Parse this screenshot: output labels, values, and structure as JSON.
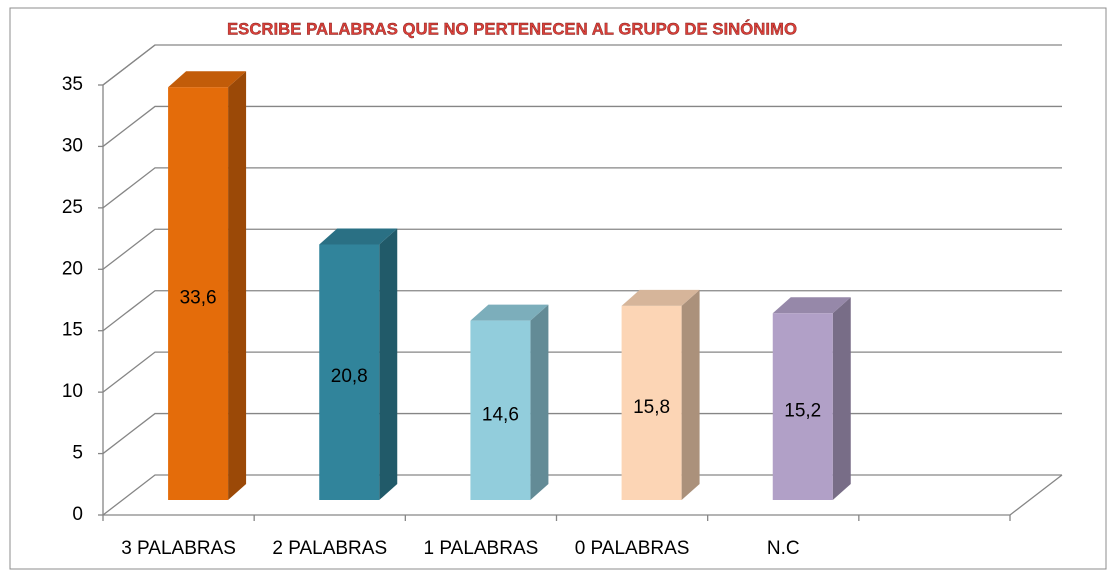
{
  "chart_data": {
    "type": "bar3d",
    "title": "ESCRIBE PALABRAS QUE NO PERTENECEN AL GRUPO DE SINÓNIMO",
    "categories": [
      "3 PALABRAS",
      "2 PALABRAS",
      "1 PALABRAS",
      "0 PALABRAS",
      "N.C",
      null
    ],
    "values": [
      33.6,
      20.8,
      14.6,
      15.8,
      15.2,
      null
    ],
    "value_labels": [
      "33,6",
      "20,8",
      "14,6",
      "15,8",
      "15,2",
      null
    ],
    "colors": [
      "#e46c0a",
      "#31849b",
      "#92cddc",
      "#fcd5b5",
      "#b1a0c7",
      null
    ],
    "ylim": [
      0,
      35
    ],
    "yticks": [
      0,
      5,
      10,
      15,
      20,
      25,
      30,
      35
    ],
    "grid": true
  }
}
